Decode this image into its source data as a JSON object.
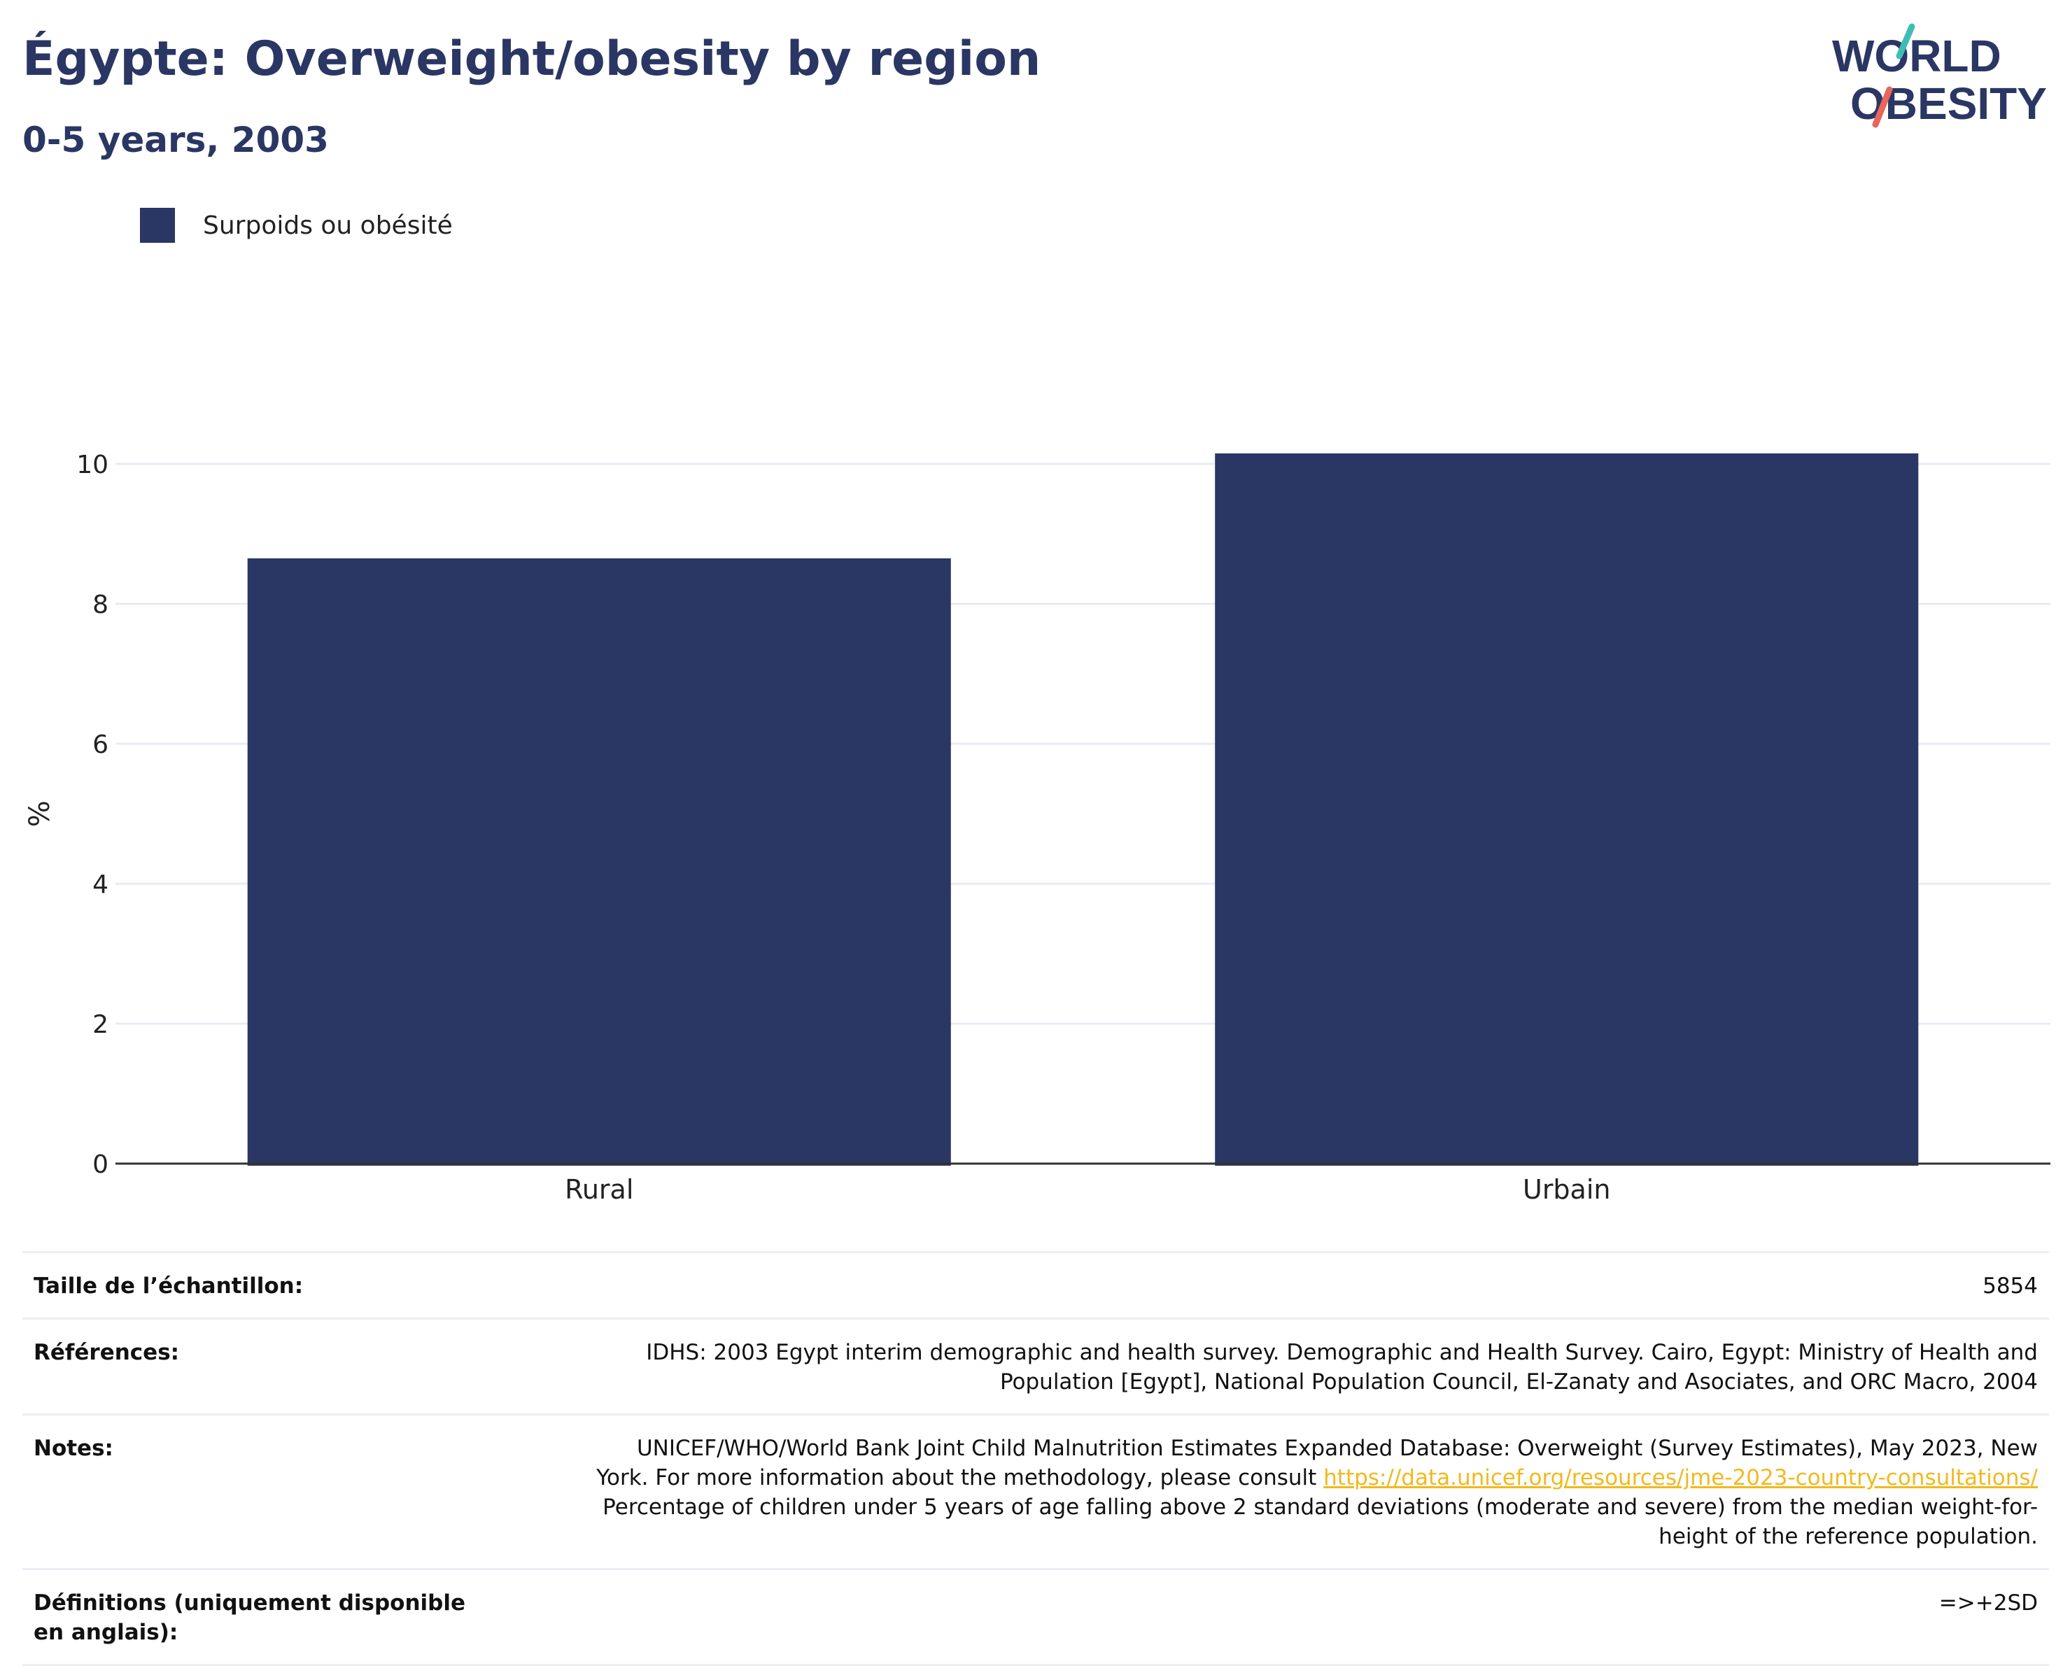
{
  "header": {
    "title": "Égypte: Overweight/obesity by region",
    "subtitle": "0-5 years, 2003"
  },
  "logo": {
    "line1": "WORLD",
    "line2": "OBESITY",
    "colors": {
      "text": "#2a3663",
      "teal": "#3ebdb4",
      "coral": "#e8665a"
    }
  },
  "legend": {
    "items": [
      {
        "label": "Surpoids ou obésité",
        "color": "#2a3663"
      }
    ]
  },
  "chart_data": {
    "type": "bar",
    "categories": [
      "Rural",
      "Urbain"
    ],
    "series": [
      {
        "name": "Surpoids ou obésité",
        "values": [
          8.65,
          10.15
        ],
        "color": "#2a3663"
      }
    ],
    "ylabel": "%",
    "xlabel": "",
    "ylim": [
      0,
      11
    ],
    "yticks": [
      0,
      2,
      4,
      6,
      8,
      10
    ],
    "grid": true,
    "legend_position": "top-left"
  },
  "info": {
    "rows": [
      {
        "key": "Taille de l’échantillon:",
        "value": "5854"
      },
      {
        "key": "Références:",
        "value": "IDHS: 2003 Egypt interim demographic and health survey. Demographic and Health Survey. Cairo, Egypt: Ministry of Health and Population [Egypt], National Population Council, El-Zanaty and Asociates, and ORC Macro, 2004"
      },
      {
        "key": "Notes:",
        "value_pre": "UNICEF/WHO/World Bank Joint Child Malnutrition Estimates Expanded Database: Overweight (Survey Estimates), May 2023, New York. For more information about the methodology, please consult ",
        "link": "https://data.unicef.org/resources/jme-2023-country-consultations/",
        "value_post": " Percentage of children under 5 years of age falling above 2 standard deviations (moderate and severe) from the median weight-for-height of the reference population."
      },
      {
        "key": "Définitions (uniquement disponible en anglais):",
        "value": "=>+2SD"
      }
    ]
  }
}
